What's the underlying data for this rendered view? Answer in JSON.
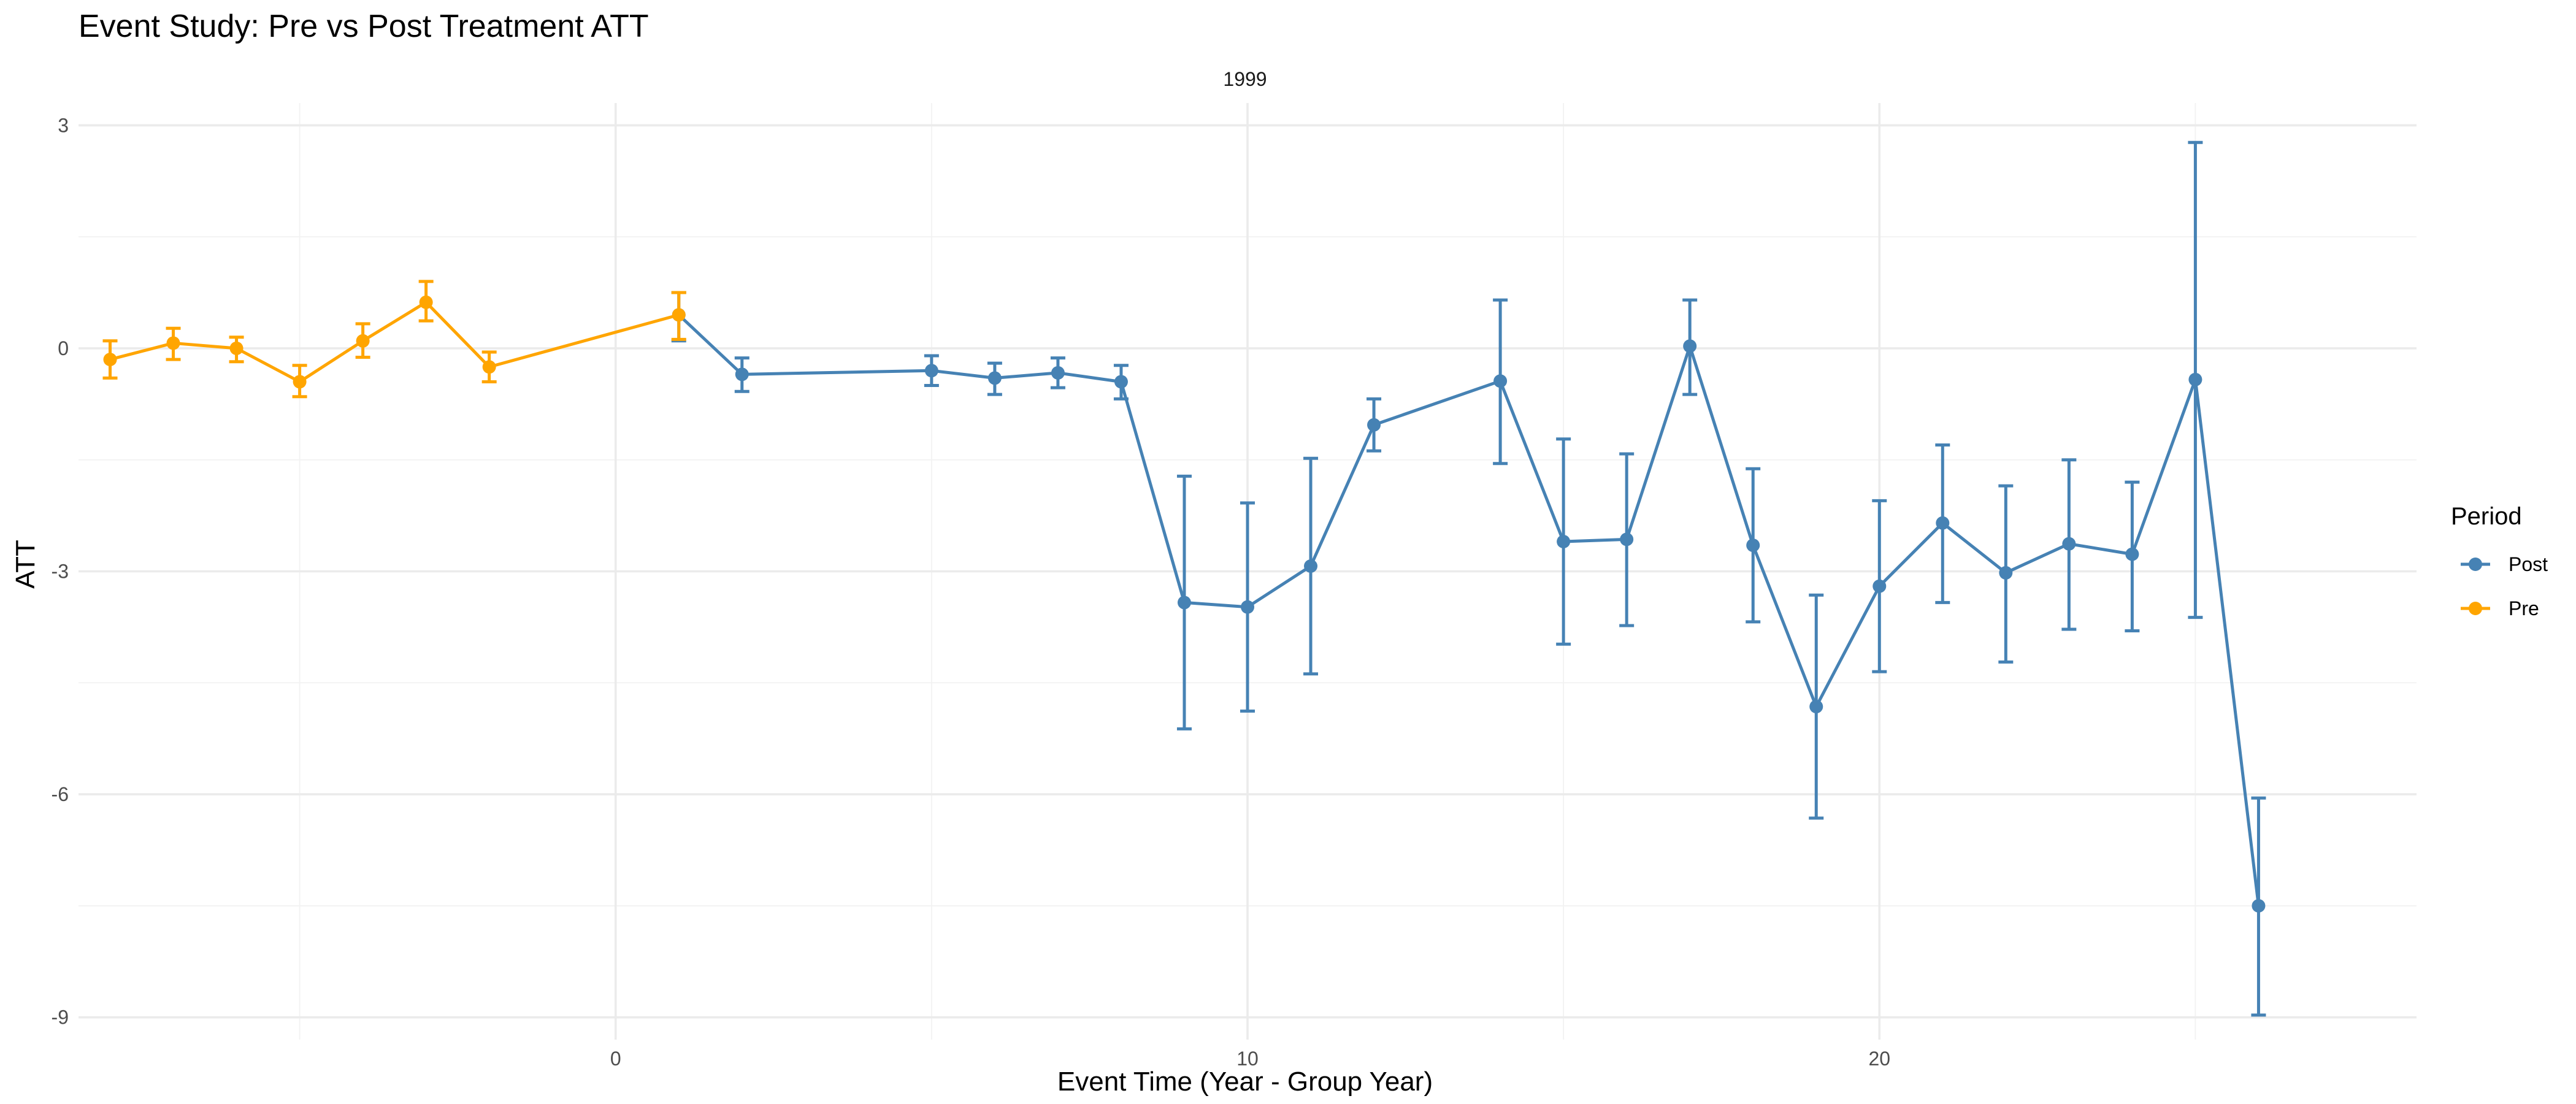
{
  "chart_data": {
    "type": "line",
    "title": "Event Study: Pre vs Post Treatment ATT",
    "facet_label": "1999",
    "xlabel": "Event Time (Year - Group Year)",
    "ylabel": "ATT",
    "xlim": [
      -8.5,
      28.5
    ],
    "ylim": [
      -9.3,
      3.3
    ],
    "x_ticks": [
      0,
      10,
      20
    ],
    "y_ticks": [
      3,
      0,
      -3,
      -6,
      -9
    ],
    "x_tick_labels": [
      "0",
      "10",
      "20"
    ],
    "y_tick_labels": [
      "3",
      "0",
      "-3",
      "-6",
      "-9"
    ],
    "grid": true,
    "legend": {
      "title": "Period",
      "position": "right"
    },
    "series": [
      {
        "name": "Post",
        "color": "#4682B4",
        "x": [
          1,
          2,
          5,
          6,
          7,
          8,
          9,
          10,
          11,
          12,
          14,
          15,
          16,
          17,
          18,
          19,
          20,
          21,
          22,
          23,
          24,
          25,
          26
        ],
        "y": [
          0.45,
          -0.35,
          -0.3,
          -0.4,
          -0.33,
          -0.45,
          -3.42,
          -3.48,
          -2.93,
          -1.03,
          -0.44,
          -2.6,
          -2.57,
          0.03,
          -2.65,
          -4.82,
          -3.2,
          -2.35,
          -3.02,
          -2.63,
          -2.77,
          -0.42,
          -7.5
        ],
        "lower": [
          0.1,
          -0.58,
          -0.5,
          -0.62,
          -0.53,
          -0.68,
          -5.12,
          -4.88,
          -4.38,
          -1.38,
          -1.55,
          -3.98,
          -3.73,
          -0.62,
          -3.68,
          -6.32,
          -4.35,
          -3.42,
          -4.22,
          -3.78,
          -3.8,
          -3.62,
          -8.97
        ],
        "upper": [
          0.75,
          -0.13,
          -0.1,
          -0.2,
          -0.13,
          -0.23,
          -1.72,
          -2.08,
          -1.48,
          -0.68,
          0.65,
          -1.22,
          -1.42,
          0.65,
          -1.62,
          -3.32,
          -2.05,
          -1.3,
          -1.85,
          -1.5,
          -1.8,
          2.77,
          -6.05
        ]
      },
      {
        "name": "Pre",
        "color": "#FFA500",
        "x": [
          -8,
          -7,
          -6,
          -5,
          -4,
          -3,
          -2,
          1
        ],
        "y": [
          -0.15,
          0.07,
          0.0,
          -0.45,
          0.1,
          0.62,
          -0.25,
          0.45
        ],
        "lower": [
          -0.4,
          -0.15,
          -0.18,
          -0.65,
          -0.12,
          0.37,
          -0.45,
          0.12
        ],
        "upper": [
          0.1,
          0.27,
          0.15,
          -0.23,
          0.33,
          0.9,
          -0.05,
          0.75
        ]
      }
    ]
  }
}
